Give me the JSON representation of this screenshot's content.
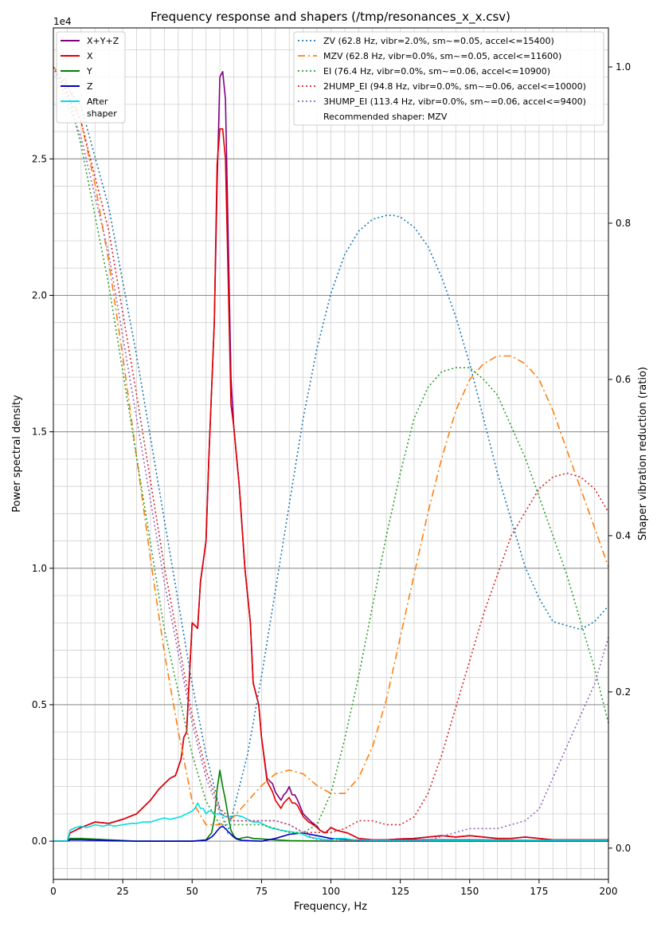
{
  "chart_data": {
    "type": "line",
    "title": "Frequency response and shapers (/tmp/resonances_x_x.csv)",
    "xlabel": "Frequency, Hz",
    "ylabel": "Power spectral density",
    "y2label": "Shaper vibration reduction (ratio)",
    "y_offset_text": "1e4",
    "xlim": [
      0,
      200
    ],
    "ylim": [
      -1400,
      29800
    ],
    "y2lim": [
      -0.04,
      1.05
    ],
    "x_ticks": [
      0,
      25,
      50,
      75,
      100,
      125,
      150,
      175,
      200
    ],
    "y_ticks": [
      {
        "v": 0,
        "label": "0.0"
      },
      {
        "v": 5000,
        "label": "0.5"
      },
      {
        "v": 10000,
        "label": "1.0"
      },
      {
        "v": 15000,
        "label": "1.5"
      },
      {
        "v": 20000,
        "label": "2.0"
      },
      {
        "v": 25000,
        "label": "2.5"
      }
    ],
    "y2_ticks": [
      {
        "v": 0.0,
        "label": "0.0"
      },
      {
        "v": 0.2,
        "label": "0.2"
      },
      {
        "v": 0.4,
        "label": "0.4"
      },
      {
        "v": 0.6,
        "label": "0.6"
      },
      {
        "v": 0.8,
        "label": "0.8"
      },
      {
        "v": 1.0,
        "label": "1.0"
      }
    ],
    "grid": "on",
    "psd_legend_position": "upper-left",
    "shaper_legend_position": "upper-right",
    "psd_series": [
      {
        "name": "X+Y+Z",
        "color": "#800080",
        "width": 1.6,
        "x": [
          0,
          5,
          6,
          10,
          15,
          20,
          25,
          30,
          35,
          38,
          40,
          42,
          44,
          46,
          47,
          48,
          50,
          52,
          53,
          55,
          56,
          58,
          59,
          60,
          61,
          62,
          63,
          64,
          65,
          67,
          69,
          71,
          72,
          74,
          75,
          77,
          79,
          80,
          82,
          83,
          84,
          85,
          86,
          87,
          88,
          90,
          92,
          93,
          95,
          96,
          98,
          100,
          102,
          104,
          106,
          110,
          115,
          120,
          125,
          130,
          135,
          140,
          145,
          150,
          155,
          160,
          165,
          170,
          175,
          180,
          185,
          190,
          195,
          200
        ],
        "y": [
          0,
          0,
          300,
          500,
          700,
          650,
          800,
          1000,
          1500,
          1900,
          2100,
          2300,
          2400,
          3000,
          3800,
          4000,
          8000,
          7800,
          9500,
          11000,
          14000,
          19000,
          24000,
          28000,
          28200,
          27200,
          22000,
          17000,
          15200,
          13000,
          10000,
          8000,
          5800,
          5000,
          3800,
          2300,
          2100,
          1800,
          1500,
          1700,
          1800,
          2000,
          1700,
          1700,
          1500,
          1000,
          800,
          700,
          550,
          400,
          300,
          500,
          400,
          350,
          300,
          100,
          50,
          50,
          80,
          100,
          150,
          200,
          150,
          200,
          150,
          100,
          100,
          150,
          100,
          50,
          50,
          50,
          50,
          50
        ]
      },
      {
        "name": "X",
        "color": "#e00000",
        "width": 1.6,
        "x": [
          0,
          5,
          6,
          10,
          15,
          20,
          25,
          30,
          35,
          38,
          40,
          42,
          44,
          46,
          47,
          48,
          50,
          52,
          53,
          55,
          56,
          58,
          59,
          60,
          61,
          62,
          63,
          64,
          65,
          67,
          69,
          71,
          72,
          74,
          75,
          77,
          79,
          80,
          82,
          83,
          84,
          85,
          86,
          87,
          88,
          90,
          92,
          93,
          95,
          96,
          98,
          100,
          102,
          104,
          106,
          110,
          115,
          120,
          125,
          130,
          135,
          140,
          145,
          150,
          155,
          160,
          165,
          170,
          175,
          180,
          185,
          190,
          195,
          200
        ],
        "y": [
          0,
          0,
          300,
          500,
          700,
          650,
          800,
          1000,
          1500,
          1900,
          2100,
          2300,
          2400,
          3000,
          3800,
          4000,
          8000,
          7800,
          9500,
          11000,
          14000,
          19000,
          24800,
          26100,
          26100,
          25000,
          20500,
          16000,
          15200,
          13000,
          10000,
          8000,
          5800,
          5000,
          3800,
          2200,
          1800,
          1500,
          1200,
          1400,
          1500,
          1600,
          1400,
          1400,
          1300,
          900,
          700,
          650,
          500,
          400,
          300,
          500,
          400,
          350,
          300,
          100,
          50,
          50,
          80,
          100,
          150,
          200,
          150,
          200,
          150,
          100,
          100,
          150,
          100,
          50,
          50,
          50,
          50,
          50
        ]
      },
      {
        "name": "Y",
        "color": "#008000",
        "width": 1.6,
        "x": [
          0,
          5,
          6,
          10,
          20,
          30,
          40,
          50,
          55,
          57,
          58,
          59,
          60,
          61,
          62,
          63,
          64,
          65,
          66,
          67,
          68,
          70,
          72,
          75,
          80,
          85,
          90,
          100,
          150,
          200
        ],
        "y": [
          0,
          0,
          100,
          100,
          50,
          0,
          0,
          0,
          50,
          300,
          800,
          1900,
          2600,
          2000,
          1500,
          900,
          400,
          200,
          100,
          80,
          120,
          150,
          100,
          80,
          50,
          20,
          10,
          0,
          0,
          0
        ]
      },
      {
        "name": "Z",
        "color": "#0000c0",
        "width": 1.6,
        "x": [
          0,
          5,
          6,
          10,
          20,
          30,
          40,
          50,
          55,
          57,
          58,
          59,
          60,
          61,
          62,
          63,
          64,
          65,
          66,
          67,
          68,
          70,
          72,
          75,
          80,
          85,
          90,
          95,
          100,
          110,
          130,
          150,
          175,
          200
        ],
        "y": [
          0,
          0,
          50,
          50,
          20,
          0,
          0,
          0,
          30,
          150,
          250,
          380,
          500,
          550,
          450,
          350,
          250,
          150,
          80,
          50,
          30,
          20,
          10,
          0,
          100,
          250,
          300,
          200,
          100,
          30,
          50,
          50,
          30,
          30
        ]
      },
      {
        "name": "After\nshaper",
        "color": "#00e0e0",
        "width": 1.6,
        "x": [
          0,
          5,
          6,
          8,
          10,
          12,
          15,
          18,
          20,
          22,
          25,
          28,
          30,
          32,
          35,
          38,
          40,
          42,
          44,
          46,
          48,
          50,
          51,
          52,
          53,
          54,
          55,
          56,
          57,
          58,
          59,
          60,
          62,
          64,
          66,
          68,
          70,
          72,
          74,
          76,
          78,
          80,
          82,
          85,
          88,
          90,
          92,
          95,
          98,
          100,
          102,
          105,
          108,
          110,
          115,
          120,
          130,
          150,
          200
        ],
        "y": [
          0,
          0,
          400,
          500,
          550,
          500,
          600,
          550,
          600,
          550,
          600,
          650,
          650,
          700,
          700,
          800,
          850,
          800,
          850,
          900,
          1000,
          1100,
          1200,
          1400,
          1200,
          1200,
          1000,
          1100,
          1100,
          1000,
          1000,
          1000,
          900,
          900,
          950,
          900,
          800,
          700,
          700,
          600,
          500,
          450,
          400,
          350,
          300,
          250,
          150,
          100,
          50,
          50,
          100,
          100,
          50,
          50,
          30,
          30,
          30,
          30,
          30
        ]
      }
    ],
    "shaper_series": [
      {
        "name": "ZV (62.8 Hz, vibr=2.0%, sm~=0.05, accel<=15400)",
        "color": "#1f77b4",
        "dash": "2,3",
        "x": [
          0,
          10,
          20,
          30,
          40,
          50,
          55,
          60,
          62.8,
          65,
          70,
          75,
          80,
          85,
          90,
          95,
          100,
          105,
          110,
          115,
          120,
          122.5,
          125,
          130,
          135,
          140,
          145,
          150,
          155,
          160,
          165,
          170,
          175,
          180,
          185,
          190,
          195,
          200
        ],
        "y": [
          1.0,
          0.95,
          0.82,
          0.63,
          0.42,
          0.21,
          0.12,
          0.05,
          0.02,
          0.05,
          0.12,
          0.22,
          0.33,
          0.44,
          0.55,
          0.64,
          0.71,
          0.76,
          0.79,
          0.805,
          0.81,
          0.81,
          0.808,
          0.795,
          0.77,
          0.73,
          0.68,
          0.62,
          0.55,
          0.48,
          0.42,
          0.36,
          0.32,
          0.29,
          0.285,
          0.28,
          0.29,
          0.31
        ]
      },
      {
        "name": "MZV (62.8 Hz, vibr=0.0%, sm~=0.05, accel<=11600)",
        "color": "#ff7f0e",
        "dash": "9,4,2,4",
        "x": [
          0,
          5,
          10,
          15,
          20,
          25,
          30,
          35,
          40,
          45,
          50,
          55,
          60,
          65,
          70,
          75,
          80,
          85,
          90,
          95,
          100,
          103,
          105,
          110,
          115,
          120,
          125,
          130,
          135,
          140,
          145,
          150,
          155,
          160,
          165,
          170,
          175,
          180,
          185,
          190,
          195,
          200
        ],
        "y": [
          1.0,
          0.98,
          0.93,
          0.85,
          0.75,
          0.63,
          0.5,
          0.37,
          0.25,
          0.15,
          0.06,
          0.03,
          0.03,
          0.04,
          0.06,
          0.08,
          0.095,
          0.1,
          0.095,
          0.08,
          0.07,
          0.07,
          0.07,
          0.09,
          0.13,
          0.19,
          0.27,
          0.35,
          0.43,
          0.5,
          0.56,
          0.6,
          0.62,
          0.63,
          0.63,
          0.62,
          0.6,
          0.56,
          0.51,
          0.46,
          0.41,
          0.36
        ]
      },
      {
        "name": "EI (76.4 Hz, vibr=0.0%, sm~=0.06, accel<=10900)",
        "color": "#2ca02c",
        "dash": "2,3",
        "x": [
          0,
          5,
          10,
          20,
          30,
          40,
          50,
          55,
          60,
          65,
          70,
          75,
          80,
          85,
          90,
          95,
          100,
          105,
          110,
          115,
          120,
          125,
          130,
          135,
          140,
          145,
          150,
          155,
          160,
          165,
          170,
          175,
          180,
          185,
          190,
          195,
          200
        ],
        "y": [
          1.0,
          0.97,
          0.9,
          0.72,
          0.5,
          0.28,
          0.12,
          0.06,
          0.03,
          0.03,
          0.03,
          0.03,
          0.025,
          0.02,
          0.02,
          0.03,
          0.07,
          0.14,
          0.22,
          0.31,
          0.4,
          0.48,
          0.55,
          0.59,
          0.61,
          0.615,
          0.615,
          0.6,
          0.58,
          0.54,
          0.5,
          0.45,
          0.4,
          0.35,
          0.29,
          0.23,
          0.16
        ]
      },
      {
        "name": "2HUMP_EI (94.8 Hz, vibr=0.0%, sm~=0.06, accel<=10000)",
        "color": "#d62728",
        "dash": "2,3",
        "x": [
          0,
          10,
          20,
          30,
          40,
          50,
          55,
          60,
          65,
          70,
          75,
          80,
          85,
          90,
          95,
          100,
          105,
          110,
          115,
          120,
          125,
          130,
          135,
          140,
          145,
          150,
          155,
          160,
          165,
          170,
          175,
          180,
          185,
          190,
          195,
          200
        ],
        "y": [
          1.0,
          0.93,
          0.79,
          0.58,
          0.36,
          0.17,
          0.1,
          0.05,
          0.035,
          0.035,
          0.035,
          0.035,
          0.03,
          0.02,
          0.02,
          0.02,
          0.025,
          0.035,
          0.035,
          0.03,
          0.03,
          0.04,
          0.07,
          0.12,
          0.18,
          0.24,
          0.3,
          0.35,
          0.4,
          0.43,
          0.46,
          0.475,
          0.48,
          0.475,
          0.46,
          0.43
        ]
      },
      {
        "name": "3HUMP_EI (113.4 Hz, vibr=0.0%, sm~=0.06, accel<=9400)",
        "color": "#9467bd",
        "dash": "2,3",
        "x": [
          0,
          10,
          20,
          30,
          40,
          50,
          55,
          60,
          65,
          70,
          75,
          80,
          85,
          90,
          95,
          100,
          105,
          110,
          115,
          120,
          125,
          130,
          135,
          140,
          145,
          150,
          155,
          160,
          165,
          170,
          175,
          180,
          185,
          190,
          195,
          200
        ],
        "y": [
          1.0,
          0.91,
          0.76,
          0.55,
          0.34,
          0.16,
          0.09,
          0.045,
          0.035,
          0.035,
          0.035,
          0.035,
          0.03,
          0.02,
          0.01,
          0.01,
          0.01,
          0.01,
          0.01,
          0.01,
          0.01,
          0.01,
          0.01,
          0.015,
          0.02,
          0.025,
          0.025,
          0.025,
          0.03,
          0.035,
          0.05,
          0.09,
          0.13,
          0.17,
          0.21,
          0.27
        ]
      }
    ],
    "shaper_legend_note": "Recommended shaper: MZV"
  }
}
